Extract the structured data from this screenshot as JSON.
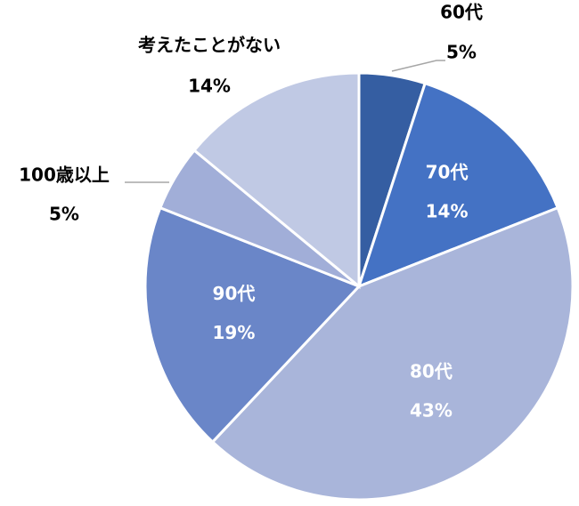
{
  "chart_data": {
    "type": "pie",
    "categories": [
      "60代",
      "70代",
      "80代",
      "90代",
      "100歳以上",
      "考えたことがない"
    ],
    "values": [
      5,
      14,
      43,
      19,
      5,
      14
    ],
    "value_labels": [
      "5%",
      "14%",
      "43%",
      "19%",
      "5%",
      "14%"
    ],
    "colors": [
      "#355ea2",
      "#4472c4",
      "#a9b5da",
      "#6a86c8",
      "#a1aed8",
      "#c0c9e4"
    ]
  }
}
